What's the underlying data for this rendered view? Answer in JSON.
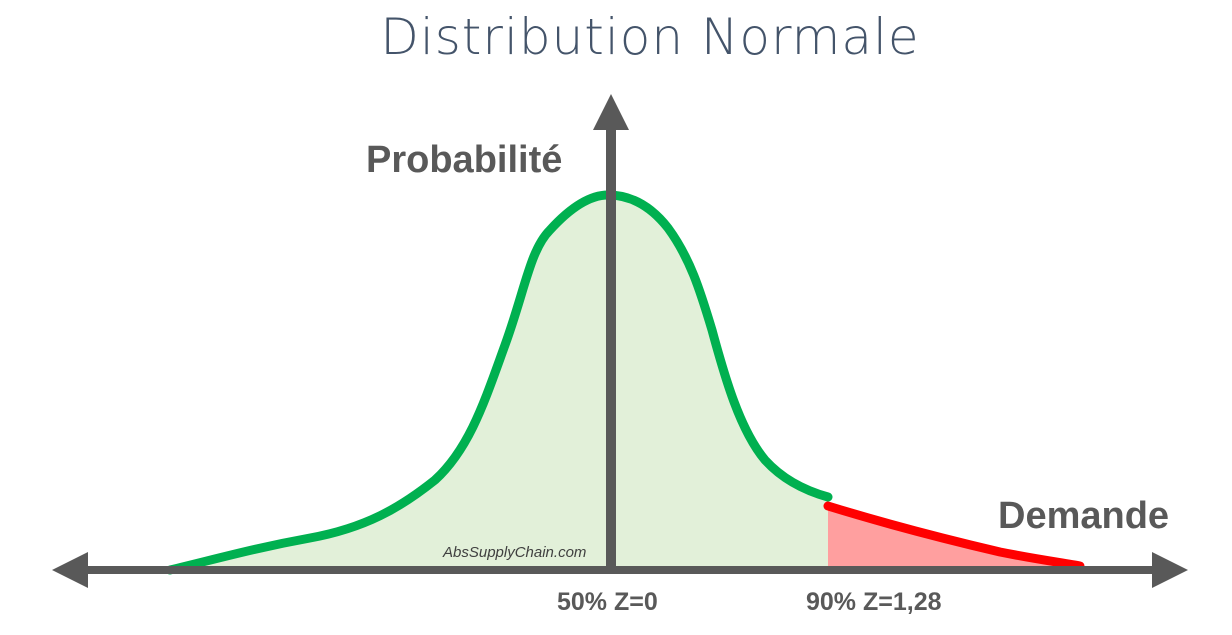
{
  "title": "Distribution Normale",
  "y_axis_label": "Probabilité",
  "x_axis_label": "Demande",
  "markers": [
    {
      "label": "50% Z=0",
      "percentile": 50,
      "z": 0
    },
    {
      "label": "90% Z=1,28",
      "percentile": 90,
      "z": 1.28
    }
  ],
  "watermark": "AbsSupplyChain.com",
  "colors": {
    "title": "#44546a",
    "axis": "#595959",
    "curve": "#00b050",
    "curve_fill": "#e2f0d9",
    "tail": "#ff0000",
    "tail_fill": "#ff9f9f"
  }
}
